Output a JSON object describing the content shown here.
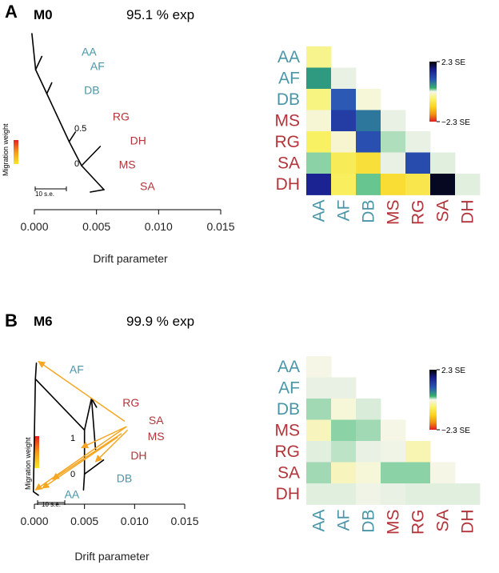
{
  "colors": {
    "west": "#4a96a8",
    "east": "#b3343a",
    "tree": "#000000",
    "arrow": "#f5a623"
  },
  "colorbar": {
    "top_label": "2.3 SE",
    "bottom_label": "−2.3 SE"
  },
  "chart_data": [
    {
      "type": "tree",
      "panel_label": "A",
      "model": "M0",
      "variance_explained": "95.1 % exp",
      "xlabel": "Drift parameter",
      "xlim": [
        0,
        0.015
      ],
      "xticks": [
        "0.000",
        "0.005",
        "0.010",
        "0.015"
      ],
      "migration_label": "Migration weight",
      "scale_label": "10 s.e.",
      "weight_ticks": [
        "0.5",
        "0"
      ],
      "leaves": [
        {
          "name": "AA",
          "group": "west",
          "x": 0.0038,
          "y": 0.2
        },
        {
          "name": "AF",
          "group": "west",
          "x": 0.0045,
          "y": 0.8
        },
        {
          "name": "DB",
          "group": "west",
          "x": 0.004,
          "y": 1.8
        },
        {
          "name": "RG",
          "group": "east",
          "x": 0.0063,
          "y": 2.9
        },
        {
          "name": "DH",
          "group": "east",
          "x": 0.0077,
          "y": 3.9
        },
        {
          "name": "MS",
          "group": "east",
          "x": 0.0068,
          "y": 4.9
        },
        {
          "name": "SA",
          "group": "east",
          "x": 0.0085,
          "y": 5.8
        }
      ],
      "edges": [
        [
          -0.0002,
          -0.6,
          0.0001,
          0.9
        ],
        [
          0.0001,
          0.9,
          0.0006,
          0.35
        ],
        [
          0.0001,
          0.9,
          0.001,
          1.9
        ],
        [
          0.001,
          1.9,
          0.0014,
          1.45
        ],
        [
          0.001,
          1.9,
          0.0028,
          3.9
        ],
        [
          0.0028,
          3.9,
          0.0033,
          3.5
        ],
        [
          0.0028,
          3.9,
          0.0038,
          4.9
        ],
        [
          0.0038,
          4.9,
          0.0053,
          4.1
        ],
        [
          0.0038,
          4.9,
          0.0056,
          5.9
        ],
        [
          0.0056,
          5.9,
          0.0045,
          6.0
        ]
      ],
      "migrations": []
    },
    {
      "type": "tree",
      "panel_label": "B",
      "model": "M6",
      "variance_explained": "99.9 % exp",
      "xlabel": "Drift parameter",
      "xlim": [
        0,
        0.015
      ],
      "xticks": [
        "0.000",
        "0.005",
        "0.010",
        "0.015"
      ],
      "migration_label": "Migration weight",
      "scale_label": "10 s.e.",
      "weight_ticks": [
        "1",
        "0"
      ],
      "leaves": [
        {
          "name": "AF",
          "group": "west",
          "x": 0.0035,
          "y": 0.8
        },
        {
          "name": "RG",
          "group": "east",
          "x": 0.0088,
          "y": 2.7
        },
        {
          "name": "SA",
          "group": "east",
          "x": 0.0114,
          "y": 3.7
        },
        {
          "name": "MS",
          "group": "east",
          "x": 0.0113,
          "y": 4.6
        },
        {
          "name": "DH",
          "group": "east",
          "x": 0.0096,
          "y": 5.7
        },
        {
          "name": "DB",
          "group": "west",
          "x": 0.0082,
          "y": 7.0
        },
        {
          "name": "AA",
          "group": "west",
          "x": 0.003,
          "y": 7.9
        }
      ],
      "edges": [
        [
          0.0002,
          0.4,
          0.0001,
          1.3
        ],
        [
          0.0001,
          1.3,
          -0.0001,
          7.7
        ],
        [
          -0.0001,
          7.7,
          0.0004,
          7.9
        ],
        [
          0.0001,
          1.3,
          0.005,
          4.2
        ],
        [
          0.005,
          4.2,
          0.0057,
          2.4
        ],
        [
          0.0057,
          2.4,
          0.0062,
          2.9
        ],
        [
          0.0057,
          2.4,
          0.0061,
          5.3
        ],
        [
          0.005,
          4.2,
          0.005,
          6.7
        ],
        [
          0.005,
          6.7,
          0.0069,
          5.9
        ],
        [
          0.005,
          6.7,
          0.0049,
          7.6
        ]
      ],
      "migrations": [
        [
          0.009,
          3.7,
          0.0004,
          0.3
        ],
        [
          0.0092,
          4.0,
          0.0001,
          7.6
        ],
        [
          0.0092,
          4.0,
          0.0047,
          5.2
        ],
        [
          0.0087,
          4.4,
          0.0018,
          7.0
        ],
        [
          0.0093,
          4.2,
          0.0061,
          6.0
        ],
        [
          0.0083,
          4.6,
          0.0008,
          7.5
        ]
      ]
    },
    {
      "type": "heatmap",
      "panel_label": "A",
      "row_labels": [
        "AA",
        "AF",
        "DB",
        "MS",
        "RG",
        "SA",
        "DH"
      ],
      "col_labels": [
        "AA",
        "AF",
        "DB",
        "MS",
        "RG",
        "SA",
        "DH"
      ],
      "row_groups": [
        "west",
        "west",
        "west",
        "east",
        "east",
        "east",
        "east"
      ],
      "col_groups": [
        "west",
        "west",
        "west",
        "east",
        "east",
        "east",
        "east"
      ],
      "range": [
        -2.3,
        2.3
      ],
      "values": [
        [
          -0.4
        ],
        [
          0.45,
          0.02
        ],
        [
          -0.45,
          0.9,
          -0.08
        ],
        [
          -0.1,
          1.25,
          0.7,
          0.02
        ],
        [
          -0.6,
          -0.12,
          1.0,
          0.1,
          0.02
        ],
        [
          0.15,
          -0.7,
          -0.95,
          0.02,
          1.05,
          0.03
        ],
        [
          1.6,
          -0.65,
          0.2,
          -1.0,
          -0.8,
          2.15,
          0.03
        ]
      ]
    },
    {
      "type": "heatmap",
      "panel_label": "B",
      "row_labels": [
        "AA",
        "AF",
        "DB",
        "MS",
        "RG",
        "SA",
        "DH"
      ],
      "col_labels": [
        "AA",
        "AF",
        "DB",
        "MS",
        "RG",
        "SA",
        "DH"
      ],
      "row_groups": [
        "west",
        "west",
        "west",
        "east",
        "east",
        "east",
        "east"
      ],
      "col_groups": [
        "west",
        "west",
        "west",
        "east",
        "east",
        "east",
        "east"
      ],
      "range": [
        -2.3,
        2.3
      ],
      "values": [
        [
          -0.02
        ],
        [
          0.02,
          0.02
        ],
        [
          0.12,
          -0.08,
          0.04
        ],
        [
          -0.2,
          0.15,
          0.12,
          -0.02
        ],
        [
          0.03,
          0.08,
          0.02,
          0.01,
          -0.25
        ],
        [
          0.12,
          -0.2,
          -0.08,
          0.15,
          0.15,
          -0.02
        ],
        [
          0.03,
          0.03,
          0.01,
          0.02,
          0.03,
          0.03,
          0.03
        ]
      ]
    }
  ]
}
